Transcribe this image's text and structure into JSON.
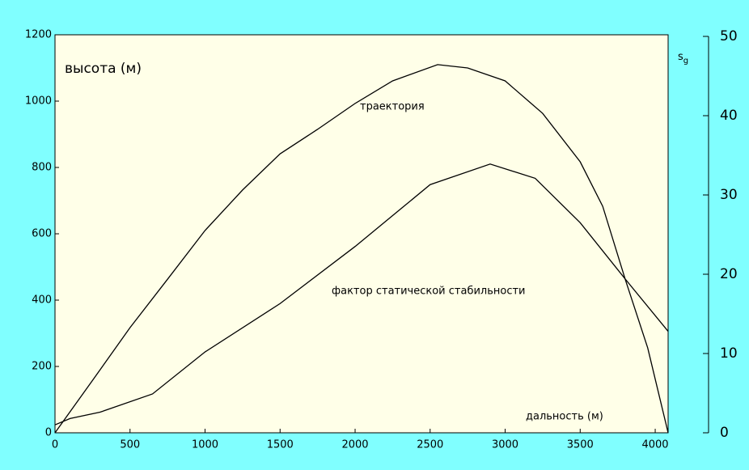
{
  "chart_data": {
    "type": "line",
    "x_label": "дальность (м)",
    "y_label": "высота (м)",
    "y2_label": [
      "s",
      "g"
    ],
    "xlim": [
      0,
      4086
    ],
    "xticks": [
      0,
      500,
      1000,
      1500,
      2000,
      2500,
      3000,
      3500,
      4000
    ],
    "ylim": [
      0,
      1200
    ],
    "yticks": [
      0,
      200,
      400,
      600,
      800,
      1000,
      1200
    ],
    "y2lim": [
      0,
      50
    ],
    "y2ticks": [
      0,
      10,
      20,
      30,
      40,
      50
    ],
    "series": [
      {
        "name": "траектория",
        "color": "#000000",
        "x": [
          0,
          250,
          500,
          750,
          1000,
          1250,
          1500,
          1750,
          2000,
          2250,
          2550,
          2750,
          3000,
          3250,
          3500,
          3650,
          3800,
          3950,
          4086
        ],
        "values": [
          0,
          158,
          317,
          463,
          610,
          732,
          841,
          915,
          993,
          1061,
          1110,
          1100,
          1061,
          963,
          817,
          683,
          463,
          256,
          0
        ]
      },
      {
        "name": "фактор статической стабильности",
        "color": "#000000",
        "axis": "y2",
        "x": [
          0,
          100,
          300,
          650,
          1000,
          1500,
          2000,
          2500,
          2900,
          3200,
          3500,
          3800,
          4086
        ],
        "values": [
          1.0,
          1.8,
          2.6,
          4.9,
          10.2,
          16.3,
          23.5,
          31.3,
          33.9,
          32.1,
          26.5,
          19.4,
          12.8
        ]
      }
    ]
  }
}
